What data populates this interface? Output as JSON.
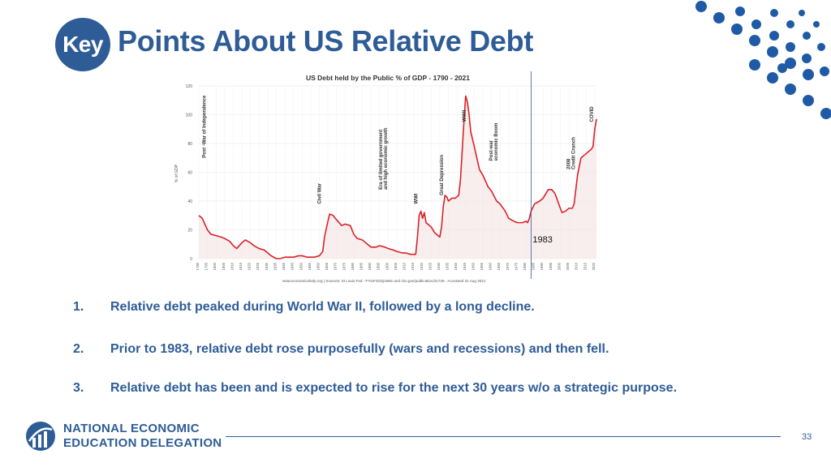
{
  "slide": {
    "badge": "Key",
    "title": "Points About US Relative Debt",
    "page_number": "33",
    "logo_line1": "NATIONAL ECONOMIC",
    "logo_line2": "EDUCATION DELEGATION"
  },
  "points": [
    {
      "num": "1.",
      "text": "Relative debt peaked during World War II, followed by a long decline."
    },
    {
      "num": "2.",
      "text": "Prior to 1983, relative debt rose purposefully (wars and recessions) and then fell."
    },
    {
      "num": "3.",
      "text": "Relative debt has been and is expected to rise for the next 30 years w/o a strategic purpose."
    }
  ],
  "colors": {
    "accent": "#2e5c97",
    "line": "#d9222a",
    "fill": "#f3e3e3"
  },
  "chart_data": {
    "type": "area",
    "title": "US Debt held by the Public % of GDP - 1790 - 2021",
    "ylabel": "% of GDP",
    "xlabel": "",
    "ylim": [
      0,
      120
    ],
    "xlim": [
      1790,
      2021
    ],
    "y_ticks": [
      0,
      20,
      40,
      60,
      80,
      100,
      120
    ],
    "x_ticks": [
      1790,
      1795,
      1800,
      1805,
      1810,
      1815,
      1820,
      1825,
      1830,
      1835,
      1840,
      1845,
      1850,
      1855,
      1860,
      1865,
      1870,
      1875,
      1880,
      1885,
      1890,
      1895,
      1900,
      1905,
      1910,
      1915,
      1920,
      1925,
      1930,
      1935,
      1940,
      1945,
      1950,
      1955,
      1960,
      1965,
      1970,
      1975,
      1980,
      1985,
      1990,
      1995,
      2000,
      2005,
      2010,
      2015,
      2020
    ],
    "grid": true,
    "source": "www.economicshelp.org | Sources: St Louis Fed - FYGFGDQ188S and cbo.gov/publication/21728 - Accessed 31 Aug 2021",
    "marker_line": {
      "x": 1983,
      "label": "1983"
    },
    "series": [
      {
        "x": [
          1790,
          1792,
          1795,
          1797,
          1800,
          1803,
          1805,
          1808,
          1810,
          1812,
          1815,
          1817,
          1820,
          1822,
          1825,
          1828,
          1830,
          1832,
          1835,
          1837,
          1840,
          1843,
          1845,
          1848,
          1850,
          1853,
          1855,
          1857,
          1860,
          1862,
          1863,
          1865,
          1866,
          1868,
          1870,
          1873,
          1875,
          1878,
          1880,
          1882,
          1885,
          1888,
          1890,
          1893,
          1895,
          1898,
          1900,
          1903,
          1905,
          1908,
          1910,
          1913,
          1916,
          1917,
          1918,
          1919,
          1920,
          1921,
          1922,
          1925,
          1927,
          1929,
          1930,
          1931,
          1932,
          1933,
          1934,
          1935,
          1937,
          1939,
          1940,
          1941,
          1942,
          1943,
          1944,
          1945,
          1946,
          1947,
          1948,
          1950,
          1953,
          1955,
          1958,
          1960,
          1963,
          1965,
          1968,
          1970,
          1973,
          1975,
          1978,
          1980,
          1981,
          1982,
          1983,
          1985,
          1988,
          1990,
          1993,
          1995,
          1997,
          2000,
          2001,
          2003,
          2005,
          2007,
          2008,
          2009,
          2010,
          2012,
          2015,
          2018,
          2019,
          2020,
          2021
        ],
        "values": [
          30,
          28,
          20,
          17,
          16,
          15,
          14,
          12,
          9,
          7,
          11,
          13,
          11,
          9,
          7,
          6,
          4,
          2,
          0,
          0,
          1,
          1,
          1,
          2,
          2,
          1,
          1,
          1,
          2,
          5,
          15,
          26,
          31,
          30,
          27,
          23,
          24,
          23,
          17,
          14,
          13,
          10,
          8,
          8,
          9,
          8,
          7,
          6,
          5,
          4,
          4,
          3,
          3,
          15,
          30,
          33,
          28,
          32,
          25,
          22,
          18,
          16,
          15,
          22,
          36,
          44,
          43,
          40,
          42,
          42,
          43,
          44,
          55,
          75,
          95,
          113,
          109,
          100,
          88,
          78,
          62,
          58,
          50,
          47,
          40,
          38,
          33,
          28,
          26,
          25,
          25,
          26,
          25,
          28,
          33,
          38,
          40,
          42,
          48,
          48,
          45,
          35,
          32,
          33,
          35,
          35,
          38,
          48,
          58,
          70,
          73,
          76,
          78,
          90,
          97
        ]
      }
    ],
    "annotations": [
      {
        "x": 1795,
        "text": "Post -War of Independence"
      },
      {
        "x": 1861,
        "text": "Civil War"
      },
      {
        "x": 1898,
        "text": "Era of limited government"
      },
      {
        "x": 1898,
        "text": "and high economic growth"
      },
      {
        "x": 1917,
        "text": "WWI"
      },
      {
        "x": 1932,
        "text": "Great Depression"
      },
      {
        "x": 1945,
        "text": "WWII"
      },
      {
        "x": 1962,
        "text": "Post-war"
      },
      {
        "x": 1962,
        "text": "economic Boom"
      },
      {
        "x": 2007,
        "text": "2008"
      },
      {
        "x": 2007,
        "text": "Credit Crunch"
      },
      {
        "x": 2019,
        "text": "COVID"
      }
    ]
  }
}
